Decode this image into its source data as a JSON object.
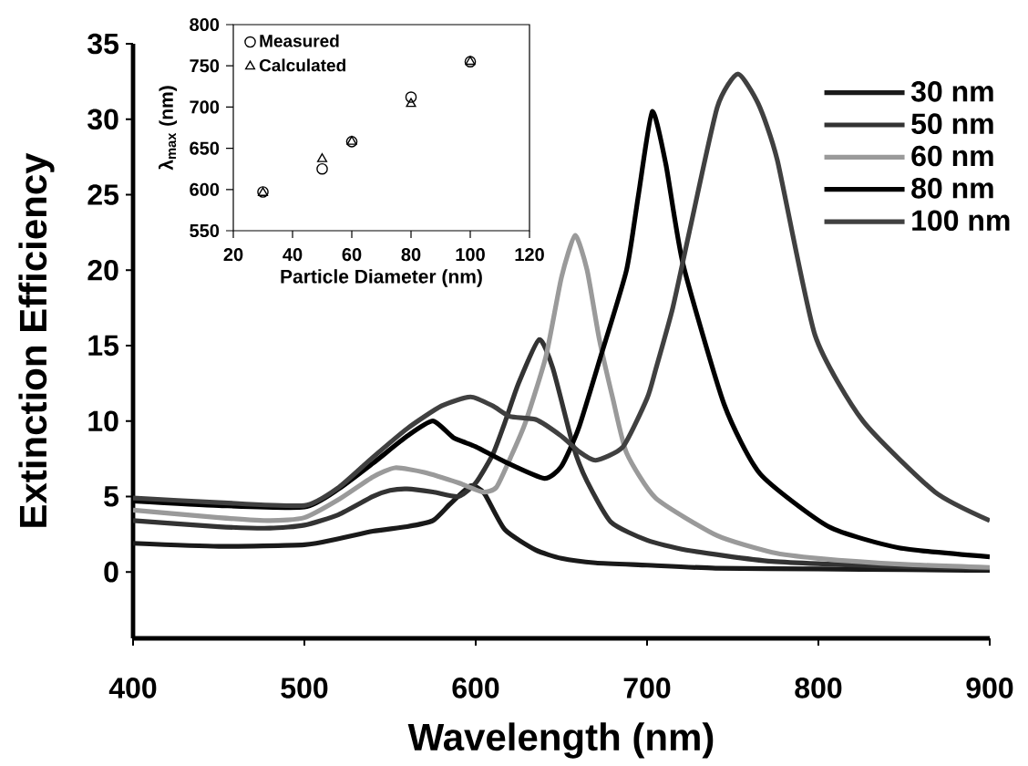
{
  "chart_data": [
    {
      "type": "line",
      "xlabel": "Wavelength (nm)",
      "ylabel": "Extinction Efficiency",
      "xlim": [
        400,
        900
      ],
      "ylim": [
        -4.4,
        35
      ],
      "xticks": [
        400,
        500,
        600,
        700,
        800,
        900
      ],
      "yticks": [
        0,
        5,
        10,
        15,
        20,
        25,
        30,
        35
      ],
      "legend": "top right",
      "marker": "none",
      "line_style": "solid",
      "grid": false,
      "series": [
        {
          "name": "30 nm",
          "color": "#1a1a1a",
          "x": [
            400,
            450,
            500,
            520,
            540,
            560,
            575,
            585,
            597,
            605,
            617,
            635,
            650,
            670,
            700,
            740,
            800,
            850,
            900
          ],
          "values": [
            1.9,
            1.7,
            1.8,
            2.2,
            2.7,
            3.0,
            3.4,
            4.5,
            5.7,
            5.2,
            2.8,
            1.45,
            0.9,
            0.6,
            0.45,
            0.25,
            0.2,
            0.15,
            0.1
          ]
        },
        {
          "name": "50 nm",
          "color": "#333333",
          "x": [
            400,
            450,
            480,
            500,
            520,
            540,
            550,
            560,
            575,
            590,
            600,
            610,
            617,
            625,
            637,
            645,
            657,
            665,
            679,
            700,
            723,
            773,
            850,
            900
          ],
          "values": [
            3.4,
            3.0,
            2.9,
            3.1,
            3.8,
            5.0,
            5.4,
            5.5,
            5.3,
            5.0,
            5.9,
            7.8,
            9.9,
            12.5,
            15.4,
            13.5,
            8.3,
            6.0,
            3.3,
            2.1,
            1.45,
            0.7,
            0.35,
            0.25
          ]
        },
        {
          "name": "60 nm",
          "color": "#9a9a9a",
          "x": [
            400,
            450,
            480,
            500,
            520,
            540,
            553,
            570,
            590,
            604,
            612,
            620,
            629,
            641,
            650,
            658,
            665,
            672,
            680,
            688,
            705,
            741,
            773,
            800,
            850,
            900
          ],
          "values": [
            4.1,
            3.6,
            3.4,
            3.6,
            4.8,
            6.3,
            6.9,
            6.6,
            5.9,
            5.3,
            5.6,
            7.5,
            9.9,
            14.3,
            19.5,
            22.3,
            20.0,
            15.5,
            11.5,
            7.9,
            4.9,
            2.4,
            1.3,
            0.9,
            0.5,
            0.3
          ]
        },
        {
          "name": "80 nm",
          "color": "#000000",
          "x": [
            400,
            450,
            500,
            520,
            540,
            560,
            575,
            587,
            600,
            617,
            640,
            650,
            660,
            673,
            688,
            695,
            703,
            711,
            721,
            745,
            766,
            806,
            847,
            900
          ],
          "values": [
            4.7,
            4.4,
            4.3,
            5.5,
            7.2,
            9.0,
            10.0,
            8.9,
            8.3,
            7.3,
            6.2,
            7.0,
            9.5,
            14.3,
            20.0,
            25.0,
            30.5,
            27.0,
            20.4,
            11.1,
            6.5,
            3.0,
            1.6,
            1.0
          ]
        },
        {
          "name": "100 nm",
          "color": "#404040",
          "x": [
            400,
            450,
            500,
            520,
            540,
            560,
            580,
            597,
            610,
            620,
            635,
            650,
            660,
            670,
            686,
            700,
            705,
            715,
            725,
            741,
            753,
            765,
            776,
            798,
            826,
            868,
            900
          ],
          "values": [
            4.9,
            4.6,
            4.4,
            5.6,
            7.6,
            9.5,
            11.0,
            11.6,
            11.0,
            10.3,
            10.1,
            9.0,
            8.0,
            7.4,
            8.3,
            11.5,
            13.4,
            17.5,
            22.7,
            30.8,
            33.0,
            31.0,
            27.3,
            15.7,
            10.0,
            5.3,
            3.4
          ]
        }
      ]
    },
    {
      "type": "scatter",
      "xlabel": "Particle Diameter (nm)",
      "ylabel": "λ$_{max}$ (nm)",
      "xlim": [
        20,
        120
      ],
      "ylim": [
        550,
        800
      ],
      "xticks": [
        20,
        40,
        60,
        80,
        100,
        120
      ],
      "yticks": [
        550,
        600,
        650,
        700,
        750,
        800
      ],
      "legend": "top left",
      "grid": false,
      "x": [
        30,
        50,
        60,
        80,
        100
      ],
      "series": [
        {
          "name": "Measured",
          "color": "#000000",
          "marker": "circle",
          "values": [
            597,
            625,
            658,
            712,
            755
          ]
        },
        {
          "name": "Calculated",
          "color": "#000000",
          "marker": "triangle",
          "values": [
            596,
            637,
            658,
            704,
            755
          ]
        }
      ]
    }
  ]
}
